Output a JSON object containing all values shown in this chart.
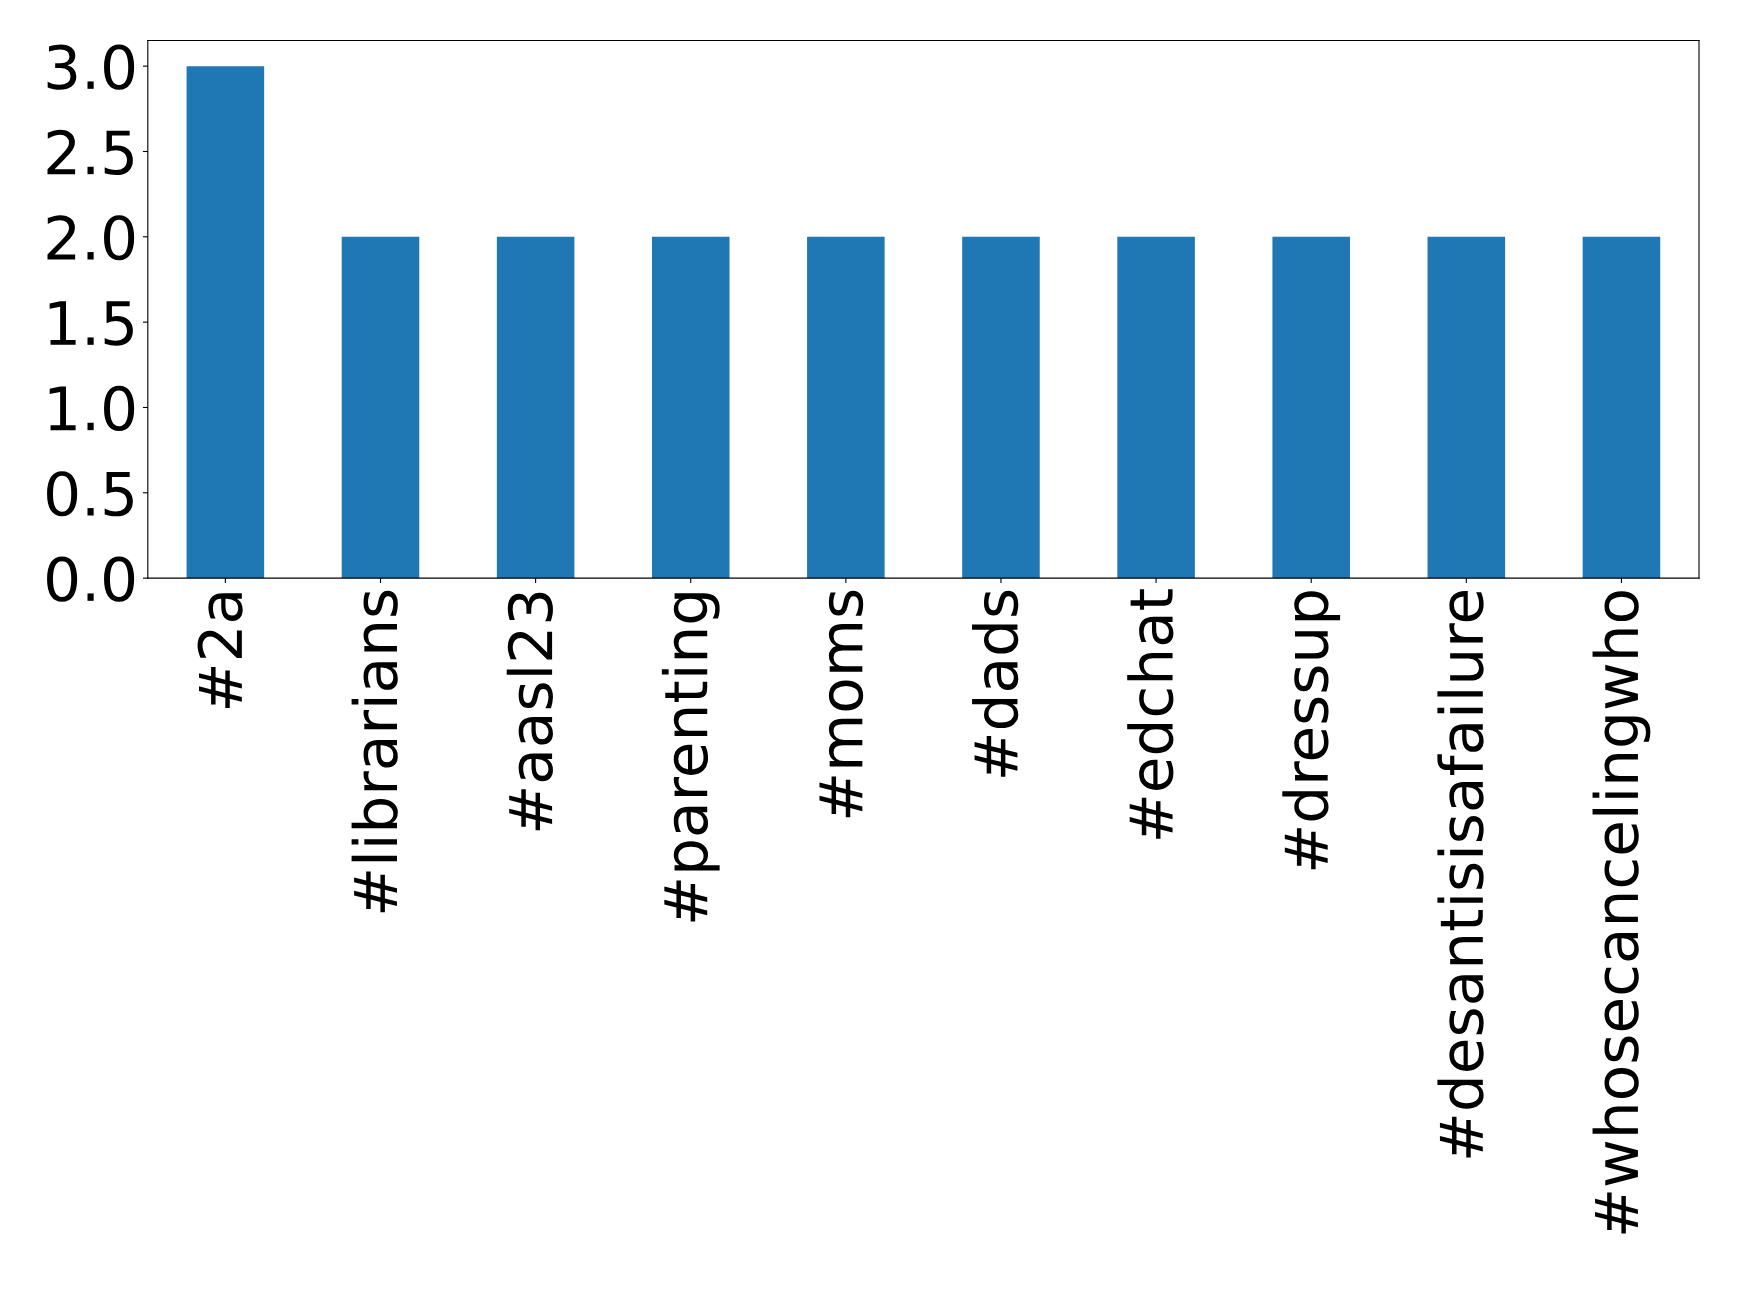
{
  "chart_data": {
    "type": "bar",
    "categories": [
      "#2a",
      "#librarians",
      "#aasl23",
      "#parenting",
      "#moms",
      "#dads",
      "#edchat",
      "#dressup",
      "#desantisisafailure",
      "#whosecancelingwho"
    ],
    "values": [
      3,
      2,
      2,
      2,
      2,
      2,
      2,
      2,
      2,
      2
    ],
    "color": "#1f77b4",
    "ylim": [
      0,
      3.15
    ],
    "yticks": [
      {
        "value": 0,
        "label": "0.0"
      },
      {
        "value": 0.5,
        "label": "0.5"
      },
      {
        "value": 1,
        "label": "1.0"
      },
      {
        "value": 1.5,
        "label": "1.5"
      },
      {
        "value": 2,
        "label": "2.0"
      },
      {
        "value": 2.5,
        "label": "2.5"
      },
      {
        "value": 3,
        "label": "3.0"
      }
    ],
    "grid": false,
    "legend": false
  }
}
